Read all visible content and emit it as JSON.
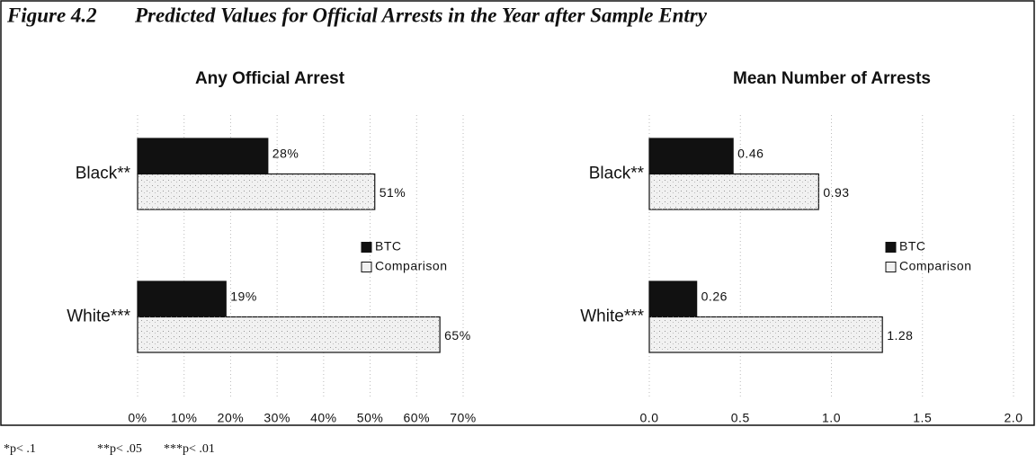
{
  "figure_label": "Figure 4.2",
  "title": "Predicted Values for Official Arrests in the Year after Sample Entry",
  "chart_data": [
    {
      "type": "bar",
      "orientation": "horizontal",
      "title": "Any Official Arrest",
      "categories": [
        "Black**",
        "White***"
      ],
      "series": [
        {
          "name": "BTC",
          "color": "#111111",
          "values": [
            28,
            19
          ],
          "value_labels": [
            "28%",
            "19%"
          ]
        },
        {
          "name": "Comparison",
          "color": "#f1f1f1",
          "values": [
            51,
            65
          ],
          "value_labels": [
            "51%",
            "65%"
          ]
        }
      ],
      "xlim": [
        0,
        70
      ],
      "xticks": [
        {
          "value": 0,
          "label": "0%"
        },
        {
          "value": 10,
          "label": "10%"
        },
        {
          "value": 20,
          "label": "20%"
        },
        {
          "value": 30,
          "label": "30%"
        },
        {
          "value": 40,
          "label": "40%"
        },
        {
          "value": 50,
          "label": "50%"
        },
        {
          "value": 60,
          "label": "60%"
        },
        {
          "value": 70,
          "label": "70%"
        }
      ],
      "grid": true,
      "legend": "right"
    },
    {
      "type": "bar",
      "orientation": "horizontal",
      "title": "Mean Number of Arrests",
      "categories": [
        "Black**",
        "White***"
      ],
      "series": [
        {
          "name": "BTC",
          "color": "#111111",
          "values": [
            0.46,
            0.26
          ]
        },
        {
          "name": "Comparison",
          "color": "#f1f1f1",
          "values": [
            0.93,
            1.28
          ]
        }
      ],
      "xlim": [
        0,
        2
      ],
      "xticks": [
        {
          "value": 0,
          "label": "0.0"
        },
        0.5,
        {
          "value": 1,
          "label": "1.0"
        },
        1.5,
        {
          "value": 2,
          "label": "2.0"
        }
      ],
      "grid": true,
      "legend": "right"
    }
  ],
  "notes": [
    "*p< .1",
    "**p< .05",
    "***p< .01"
  ]
}
